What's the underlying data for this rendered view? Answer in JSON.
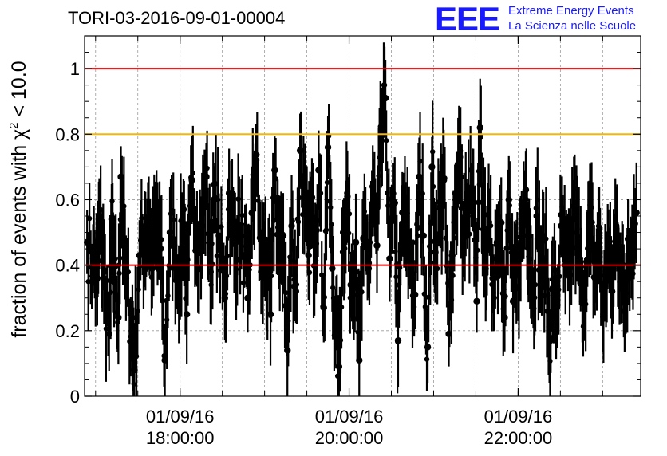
{
  "page": {
    "title": "TORI-03-2016-09-01-00004",
    "logo": {
      "mark": "EEE",
      "line1": "Extreme Energy Events",
      "line2": "La Scienza nelle Scuole",
      "color": "#1a1aff"
    }
  },
  "chart_data": {
    "type": "scatter",
    "title": "TORI-03-2016-09-01-00004",
    "ylabel": "fraction of events with χ² < 10.0",
    "ylabel_parts": {
      "prefix": "fraction of events with ",
      "symbol": "χ",
      "sup": "2",
      "suffix": " < 10.0"
    },
    "xlabel": "",
    "x_unit": "hours of day 01/09/16",
    "xlim": [
      16.87,
      23.45
    ],
    "ylim": [
      0,
      1.1
    ],
    "y_ticks": [
      0,
      0.2,
      0.4,
      0.6,
      0.8,
      1
    ],
    "y_tick_labels": [
      "0",
      "0.2",
      "0.4",
      "0.6",
      "0.8",
      "1"
    ],
    "x_ticks": [
      {
        "x": 18,
        "date": "01/09/16",
        "time": "18:00:00"
      },
      {
        "x": 20,
        "date": "01/09/16",
        "time": "20:00:00"
      },
      {
        "x": 22,
        "date": "01/09/16",
        "time": "22:00:00"
      }
    ],
    "grid": true,
    "reference_lines": [
      {
        "y": 1.0,
        "color": "#dd0000"
      },
      {
        "y": 0.8,
        "color": "#f5b800"
      },
      {
        "y": 0.4,
        "color": "#dd0000"
      }
    ],
    "series": [
      {
        "marker": "circle",
        "color": "#000000",
        "typical_error": 0.12,
        "points": [
          [
            16.9,
            0.47
          ],
          [
            16.97,
            0.42
          ],
          [
            17.02,
            0.36
          ],
          [
            17.05,
            0.53
          ],
          [
            17.1,
            0.38
          ],
          [
            17.16,
            0.19
          ],
          [
            17.19,
            0.54
          ],
          [
            17.22,
            0.35
          ],
          [
            17.27,
            0.24
          ],
          [
            17.3,
            0.67
          ],
          [
            17.36,
            0.36
          ],
          [
            17.43,
            0.2
          ],
          [
            17.46,
            0.08
          ],
          [
            17.52,
            0.43
          ],
          [
            17.58,
            0.48
          ],
          [
            17.63,
            0.55
          ],
          [
            17.67,
            0.39
          ],
          [
            17.71,
            0.52
          ],
          [
            17.77,
            0.45
          ],
          [
            17.82,
            0.11
          ],
          [
            17.88,
            0.5
          ],
          [
            17.93,
            0.46
          ],
          [
            18.0,
            0.39
          ],
          [
            18.04,
            0.57
          ],
          [
            18.08,
            0.25
          ],
          [
            18.14,
            0.66
          ],
          [
            18.2,
            0.48
          ],
          [
            18.26,
            0.52
          ],
          [
            18.31,
            0.67
          ],
          [
            18.36,
            0.38
          ],
          [
            18.4,
            0.6
          ],
          [
            18.46,
            0.49
          ],
          [
            18.53,
            0.3
          ],
          [
            18.58,
            0.62
          ],
          [
            18.64,
            0.47
          ],
          [
            18.7,
            0.52
          ],
          [
            18.76,
            0.43
          ],
          [
            18.8,
            0.3
          ],
          [
            18.85,
            0.56
          ],
          [
            18.9,
            0.72
          ],
          [
            18.96,
            0.38
          ],
          [
            19.01,
            0.45
          ],
          [
            19.07,
            0.25
          ],
          [
            19.12,
            0.69
          ],
          [
            19.18,
            0.4
          ],
          [
            19.22,
            0.49
          ],
          [
            19.27,
            0.14
          ],
          [
            19.32,
            0.52
          ],
          [
            19.37,
            0.32
          ],
          [
            19.42,
            0.75
          ],
          [
            19.47,
            0.58
          ],
          [
            19.52,
            0.43
          ],
          [
            19.55,
            0.56
          ],
          [
            19.6,
            0.46
          ],
          [
            19.64,
            0.69
          ],
          [
            19.7,
            0.27
          ],
          [
            19.75,
            0.76
          ],
          [
            19.8,
            0.39
          ],
          [
            19.84,
            0.21
          ],
          [
            19.88,
            0.09
          ],
          [
            19.93,
            0.5
          ],
          [
            19.98,
            0.61
          ],
          [
            20.02,
            0.34
          ],
          [
            20.08,
            0.47
          ],
          [
            20.12,
            0.11
          ],
          [
            20.17,
            0.48
          ],
          [
            20.23,
            0.39
          ],
          [
            20.28,
            0.64
          ],
          [
            20.33,
            0.46
          ],
          [
            20.38,
            0.78
          ],
          [
            20.43,
            0.91
          ],
          [
            20.48,
            0.42
          ],
          [
            20.54,
            0.59
          ],
          [
            20.58,
            0.17
          ],
          [
            20.63,
            0.56
          ],
          [
            20.68,
            0.49
          ],
          [
            20.73,
            0.42
          ],
          [
            20.78,
            0.31
          ],
          [
            20.83,
            0.67
          ],
          [
            20.88,
            0.49
          ],
          [
            20.93,
            0.15
          ],
          [
            20.98,
            0.7
          ],
          [
            21.02,
            0.44
          ],
          [
            21.08,
            0.58
          ],
          [
            21.12,
            0.66
          ],
          [
            21.18,
            0.19
          ],
          [
            21.22,
            0.43
          ],
          [
            21.26,
            0.62
          ],
          [
            21.31,
            0.73
          ],
          [
            21.35,
            0.48
          ],
          [
            21.4,
            0.55
          ],
          [
            21.46,
            0.63
          ],
          [
            21.51,
            0.29
          ],
          [
            21.55,
            0.82
          ],
          [
            21.6,
            0.44
          ],
          [
            21.64,
            0.51
          ],
          [
            21.7,
            0.36
          ],
          [
            21.75,
            0.47
          ],
          [
            21.8,
            0.53
          ],
          [
            21.84,
            0.24
          ],
          [
            21.89,
            0.6
          ],
          [
            21.94,
            0.29
          ],
          [
            21.98,
            0.38
          ],
          [
            22.03,
            0.45
          ],
          [
            22.09,
            0.63
          ],
          [
            22.13,
            0.49
          ],
          [
            22.18,
            0.3
          ],
          [
            22.22,
            0.55
          ],
          [
            22.27,
            0.39
          ],
          [
            22.32,
            0.42
          ],
          [
            22.37,
            0.18
          ],
          [
            22.41,
            0.33
          ],
          [
            22.46,
            0.27
          ],
          [
            22.51,
            0.52
          ],
          [
            22.56,
            0.4
          ],
          [
            22.61,
            0.37
          ],
          [
            22.66,
            0.58
          ],
          [
            22.71,
            0.45
          ],
          [
            22.76,
            0.29
          ],
          [
            22.81,
            0.41
          ],
          [
            22.86,
            0.53
          ],
          [
            22.91,
            0.36
          ],
          [
            22.96,
            0.49
          ],
          [
            23.01,
            0.25
          ],
          [
            23.06,
            0.46
          ],
          [
            23.11,
            0.32
          ],
          [
            23.16,
            0.52
          ],
          [
            23.21,
            0.41
          ],
          [
            23.26,
            0.26
          ],
          [
            23.3,
            0.48
          ],
          [
            23.35,
            0.44
          ],
          [
            23.4,
            0.56
          ]
        ]
      }
    ]
  }
}
